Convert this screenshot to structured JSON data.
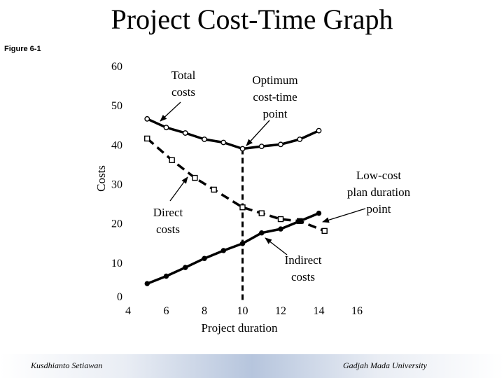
{
  "slide": {
    "title": "Project Cost-Time Graph",
    "figure_label": "Figure 6-1",
    "footer_left": "Kusdhianto Setiawan",
    "footer_right": "Gadjah Mada University"
  },
  "chart_data": {
    "type": "line",
    "xlabel": "Project duration",
    "ylabel": "Costs",
    "xlim": [
      4,
      16
    ],
    "ylim": [
      0,
      60
    ],
    "x_ticks": [
      "4",
      "6",
      "8",
      "10",
      "12",
      "14",
      "16"
    ],
    "y_ticks": [
      "0",
      "10",
      "20",
      "30",
      "40",
      "50",
      "60"
    ],
    "series": [
      {
        "key": "total",
        "marker": "circle-open",
        "style": "solid",
        "points": [
          [
            5,
            46.5
          ],
          [
            6,
            44.3
          ],
          [
            7,
            42.9
          ],
          [
            8,
            41.3
          ],
          [
            9,
            40.5
          ],
          [
            10,
            38.9
          ],
          [
            11,
            39.5
          ],
          [
            12,
            40.0
          ],
          [
            13,
            41.3
          ],
          [
            14,
            43.5
          ]
        ]
      },
      {
        "key": "indirect",
        "marker": "square-open",
        "style": "dashed",
        "points": [
          [
            5,
            41.5
          ],
          [
            6.3,
            36.0
          ],
          [
            7.5,
            31.5
          ],
          [
            8.5,
            28.5
          ],
          [
            10,
            24.0
          ],
          [
            11,
            22.5
          ],
          [
            12,
            21.0
          ],
          [
            13,
            20.5
          ],
          [
            14.3,
            18.0
          ]
        ]
      },
      {
        "key": "direct",
        "marker": "circle-filled",
        "style": "solid",
        "points": [
          [
            5,
            4.6
          ],
          [
            6,
            6.5
          ],
          [
            7,
            8.7
          ],
          [
            8,
            11.0
          ],
          [
            9,
            13.0
          ],
          [
            10,
            14.8
          ],
          [
            11,
            17.5
          ],
          [
            12,
            18.5
          ],
          [
            13,
            20.5
          ],
          [
            14,
            22.5
          ]
        ]
      }
    ],
    "optimum_x": 10,
    "annotations": [
      {
        "key": "total",
        "line1": "Total",
        "line2": "costs",
        "line3": ""
      },
      {
        "key": "optimum",
        "line1": "Optimum",
        "line2": "cost-time",
        "line3": "point"
      },
      {
        "key": "lowcost",
        "line1": "Low-cost",
        "line2": "plan duration",
        "line3": "point"
      },
      {
        "key": "direct",
        "line1": "Direct",
        "line2": "costs",
        "line3": ""
      },
      {
        "key": "indirect",
        "line1": "Indirect",
        "line2": "costs",
        "line3": ""
      }
    ],
    "colors": {
      "ink": "#000000"
    }
  }
}
